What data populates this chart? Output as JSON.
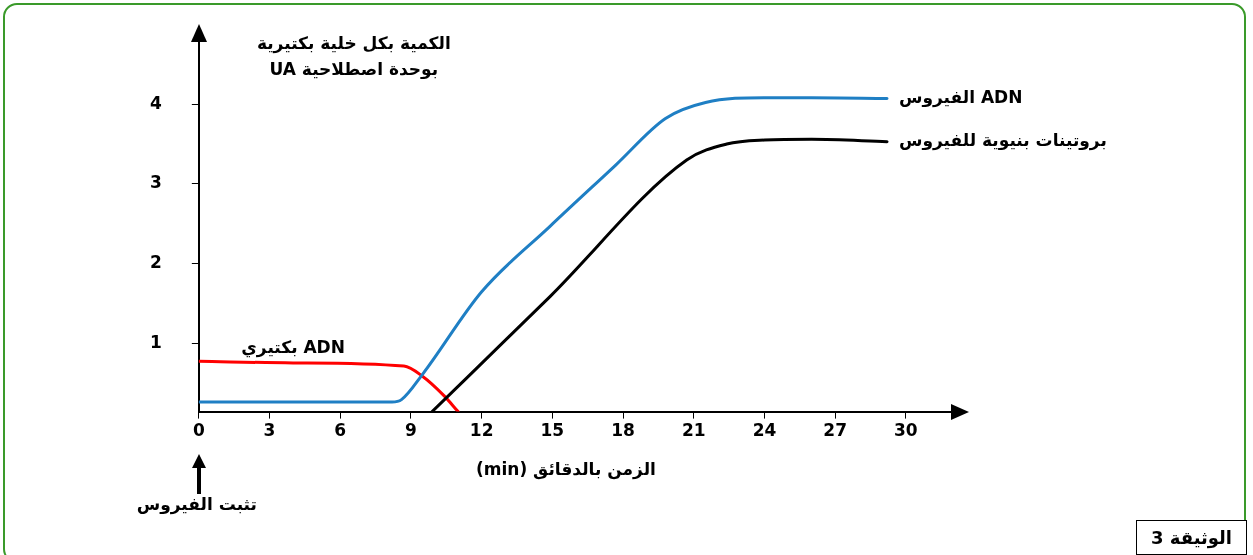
{
  "chart_data": {
    "type": "line",
    "xlabel": "الزمن بالدقائق (min)",
    "ylabel": "الكمية بكل خلية بكتيرية بوحدة اصطلاحية UA",
    "xlim": [
      0,
      32
    ],
    "xticks": [
      0,
      3,
      6,
      9,
      12,
      15,
      18,
      21,
      24,
      27,
      30
    ],
    "ylim": [
      0.15,
      4.8
    ],
    "yticks": [
      1,
      2,
      3,
      4
    ],
    "grid": false,
    "legend": false,
    "marker": "none",
    "line_style": "solid",
    "series": [
      {
        "name": "ADN الفيروس",
        "color": "#1f7fc4",
        "x": [
          0,
          4,
          8.2,
          8.6,
          9.5,
          12,
          14.9,
          17.7,
          19.8,
          21.5,
          24,
          26,
          29.2
        ],
        "values": [
          0.27,
          0.27,
          0.27,
          0.3,
          0.62,
          1.65,
          2.47,
          3.24,
          3.82,
          4.02,
          4.08,
          4.08,
          4.07
        ]
      },
      {
        "name": "بروتينات بنيوية للفيروس",
        "color": "#000000",
        "x": [
          9.9,
          14.9,
          20.7,
          22.4,
          24,
          26,
          29.2
        ],
        "values": [
          0.15,
          1.59,
          3.3,
          3.5,
          3.55,
          3.56,
          3.53
        ]
      },
      {
        "name": "ADN بكتيري",
        "color": "#ff0000",
        "x": [
          0,
          4,
          8.7,
          9.5,
          10.4,
          11
        ],
        "values": [
          0.78,
          0.76,
          0.72,
          0.59,
          0.35,
          0.15
        ]
      }
    ],
    "annotations": [
      "تثبت الفيروس",
      "الوثيقة 3"
    ]
  }
}
